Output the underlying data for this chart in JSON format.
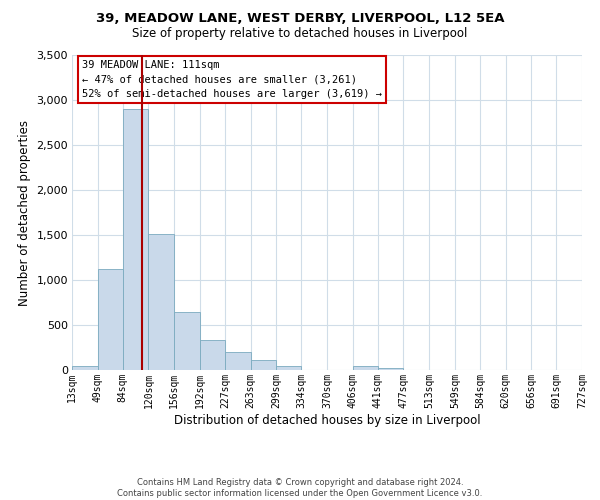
{
  "title_line1": "39, MEADOW LANE, WEST DERBY, LIVERPOOL, L12 5EA",
  "title_line2": "Size of property relative to detached houses in Liverpool",
  "xlabel": "Distribution of detached houses by size in Liverpool",
  "ylabel": "Number of detached properties",
  "bar_color": "#c9d9ea",
  "bar_edge_color": "#7aaabf",
  "bins": [
    13,
    49,
    84,
    120,
    156,
    192,
    227,
    263,
    299,
    334,
    370,
    406,
    441,
    477,
    513,
    549,
    584,
    620,
    656,
    691,
    727
  ],
  "bin_labels": [
    "13sqm",
    "49sqm",
    "84sqm",
    "120sqm",
    "156sqm",
    "192sqm",
    "227sqm",
    "263sqm",
    "299sqm",
    "334sqm",
    "370sqm",
    "406sqm",
    "441sqm",
    "477sqm",
    "513sqm",
    "549sqm",
    "584sqm",
    "620sqm",
    "656sqm",
    "691sqm",
    "727sqm"
  ],
  "values": [
    50,
    1120,
    2900,
    1510,
    650,
    330,
    200,
    110,
    50,
    0,
    0,
    40,
    20,
    0,
    0,
    0,
    0,
    0,
    0,
    0
  ],
  "ylim": [
    0,
    3500
  ],
  "yticks": [
    0,
    500,
    1000,
    1500,
    2000,
    2500,
    3000,
    3500
  ],
  "vline_x": 111,
  "vline_color": "#aa0000",
  "annotation_title": "39 MEADOW LANE: 111sqm",
  "annotation_line1": "← 47% of detached houses are smaller (3,261)",
  "annotation_line2": "52% of semi-detached houses are larger (3,619) →",
  "annotation_box_color": "#ffffff",
  "annotation_box_edge": "#cc0000",
  "footer_line1": "Contains HM Land Registry data © Crown copyright and database right 2024.",
  "footer_line2": "Contains public sector information licensed under the Open Government Licence v3.0.",
  "background_color": "#ffffff",
  "grid_color": "#d0dde8"
}
